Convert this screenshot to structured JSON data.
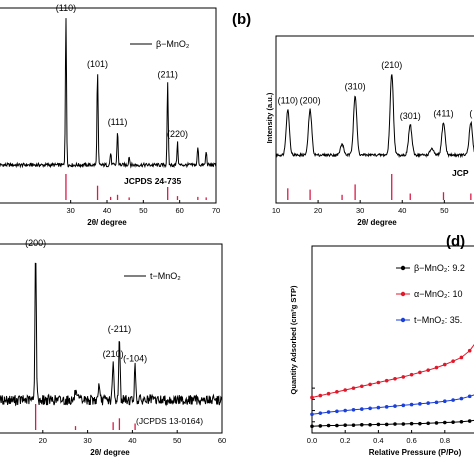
{
  "colors": {
    "trace": "#000000",
    "reference": "#d81b4a",
    "beta": "#000000",
    "alpha": "#e0182a",
    "t": "#1b3fd9"
  },
  "chart_data": [
    {
      "id": "a",
      "type": "line",
      "panel_label": "",
      "xlabel": "2θ/ degree",
      "ylabel": "",
      "xlim": [
        10,
        70
      ],
      "xticks": [
        "30",
        "40",
        "50",
        "60",
        "70"
      ],
      "legend": "β−MnO₂",
      "reference_card": "JCPDS 24-735",
      "peaks": [
        {
          "x": 28.7,
          "label": "(110)",
          "height": 1.0
        },
        {
          "x": 37.4,
          "label": "(101)",
          "height": 0.62
        },
        {
          "x": 42.9,
          "label": "(111)",
          "height": 0.23
        },
        {
          "x": 56.7,
          "label": "(211)",
          "height": 0.55
        },
        {
          "x": 59.4,
          "label": "(220)",
          "height": 0.15
        }
      ],
      "minor_peaks": [
        {
          "x": 41.0,
          "height": 0.08
        },
        {
          "x": 46.1,
          "height": 0.06
        },
        {
          "x": 65.0,
          "height": 0.12
        },
        {
          "x": 67.3,
          "height": 0.09
        }
      ],
      "ref_lines": [
        {
          "x": 28.7,
          "h": 1.0
        },
        {
          "x": 37.4,
          "h": 0.55
        },
        {
          "x": 41.0,
          "h": 0.12
        },
        {
          "x": 42.9,
          "h": 0.2
        },
        {
          "x": 46.1,
          "h": 0.1
        },
        {
          "x": 56.7,
          "h": 0.5
        },
        {
          "x": 59.4,
          "h": 0.15
        },
        {
          "x": 65.0,
          "h": 0.12
        },
        {
          "x": 67.3,
          "h": 0.1
        }
      ]
    },
    {
      "id": "b",
      "type": "line",
      "panel_label": "(b)",
      "xlabel": "2θ/ degree",
      "ylabel": "Intensity (a.u.)",
      "xlim": [
        10,
        58
      ],
      "xticks": [
        "10",
        "20",
        "30",
        "40",
        "50"
      ],
      "legend": "",
      "reference_card": "JCP",
      "peaks": [
        {
          "x": 12.8,
          "label": "(110)",
          "height": 0.42
        },
        {
          "x": 18.1,
          "label": "(200)",
          "height": 0.42
        },
        {
          "x": 28.8,
          "label": "(310)",
          "height": 0.55
        },
        {
          "x": 37.5,
          "label": "(210)",
          "height": 0.75
        },
        {
          "x": 41.9,
          "label": "(301)",
          "height": 0.28
        },
        {
          "x": 49.8,
          "label": "(411)",
          "height": 0.3
        },
        {
          "x": 56.3,
          "label": "(",
          "height": 0.3
        }
      ],
      "minor_peaks": [
        {
          "x": 25.7,
          "height": 0.1
        },
        {
          "x": 47.0,
          "height": 0.06
        }
      ],
      "ref_lines": [
        {
          "x": 12.8,
          "h": 0.45
        },
        {
          "x": 18.1,
          "h": 0.4
        },
        {
          "x": 25.7,
          "h": 0.2
        },
        {
          "x": 28.8,
          "h": 0.6
        },
        {
          "x": 37.5,
          "h": 1.0
        },
        {
          "x": 41.9,
          "h": 0.25
        },
        {
          "x": 49.8,
          "h": 0.3
        },
        {
          "x": 56.3,
          "h": 0.25
        }
      ]
    },
    {
      "id": "c",
      "type": "line",
      "panel_label": "",
      "xlabel": "2θ/ degree",
      "ylabel": "",
      "xlim": [
        10,
        60
      ],
      "xticks": [
        "20",
        "30",
        "40",
        "50",
        "60"
      ],
      "legend": "t−MnO₂",
      "reference_card": "(JCPDS 13-0164)",
      "peaks": [
        {
          "x": 18.4,
          "label": "(200)",
          "height": 1.0
        },
        {
          "x": 35.7,
          "label": "(210)",
          "height": 0.25
        },
        {
          "x": 37.1,
          "label": "(-211)",
          "height": 0.42
        },
        {
          "x": 40.6,
          "label": "(-104)",
          "height": 0.22
        }
      ],
      "minor_peaks": [
        {
          "x": 32.5,
          "height": 0.1
        },
        {
          "x": 27.3,
          "height": 0.06
        }
      ],
      "ref_lines": [
        {
          "x": 18.4,
          "h": 1.0
        },
        {
          "x": 27.3,
          "h": 0.15
        },
        {
          "x": 35.7,
          "h": 0.3
        },
        {
          "x": 37.1,
          "h": 0.45
        },
        {
          "x": 40.6,
          "h": 0.25
        }
      ]
    },
    {
      "id": "d",
      "type": "scatter",
      "panel_label": "(d)",
      "xlabel": "Relative Pressure (P/Po)",
      "ylabel": "Quantity Adsorbed (cm³g STP)",
      "xlim": [
        0,
        1
      ],
      "ylim": [
        0,
        5
      ],
      "xticks": [
        "0.0",
        "0.2",
        "0.4",
        "0.6",
        "0.8"
      ],
      "yticks": [
        "0",
        "1",
        "2",
        "3",
        "4"
      ],
      "series": [
        {
          "name": "β−MnO₂: 9.2",
          "color": "#000000",
          "x": [
            0.0,
            0.05,
            0.1,
            0.15,
            0.2,
            0.25,
            0.3,
            0.35,
            0.4,
            0.45,
            0.5,
            0.55,
            0.6,
            0.65,
            0.7,
            0.75,
            0.8,
            0.85,
            0.9,
            0.95,
            1.0
          ],
          "y": [
            0.18,
            0.19,
            0.2,
            0.2,
            0.21,
            0.21,
            0.22,
            0.22,
            0.23,
            0.23,
            0.24,
            0.24,
            0.25,
            0.25,
            0.26,
            0.27,
            0.28,
            0.29,
            0.3,
            0.32,
            0.35
          ]
        },
        {
          "name": "α−MnO₂: 10",
          "color": "#e0182a",
          "x": [
            0.0,
            0.05,
            0.1,
            0.15,
            0.2,
            0.25,
            0.3,
            0.35,
            0.4,
            0.45,
            0.5,
            0.55,
            0.6,
            0.65,
            0.7,
            0.75,
            0.8,
            0.85,
            0.9,
            0.95,
            1.0
          ],
          "y": [
            0.95,
            1.0,
            1.05,
            1.1,
            1.15,
            1.2,
            1.25,
            1.3,
            1.35,
            1.4,
            1.45,
            1.5,
            1.56,
            1.62,
            1.68,
            1.75,
            1.83,
            1.92,
            2.02,
            2.2,
            2.5
          ]
        },
        {
          "name": "t−MnO₂: 35.",
          "color": "#1b3fd9",
          "x": [
            0.0,
            0.05,
            0.1,
            0.15,
            0.2,
            0.25,
            0.3,
            0.35,
            0.4,
            0.45,
            0.5,
            0.55,
            0.6,
            0.65,
            0.7,
            0.75,
            0.8,
            0.85,
            0.9,
            0.95,
            1.0
          ],
          "y": [
            0.5,
            0.53,
            0.56,
            0.58,
            0.6,
            0.62,
            0.64,
            0.66,
            0.68,
            0.7,
            0.72,
            0.74,
            0.76,
            0.78,
            0.8,
            0.82,
            0.85,
            0.88,
            0.92,
            0.98,
            1.05
          ]
        }
      ]
    }
  ]
}
